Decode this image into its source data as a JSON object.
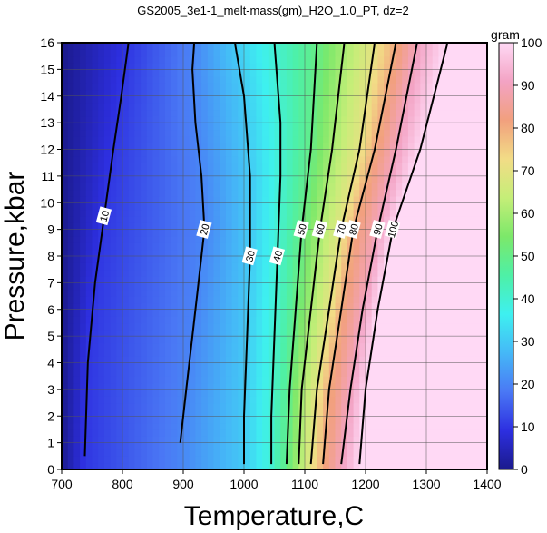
{
  "chart_data": {
    "type": "heatmap",
    "title": "GS2005_3e1-1_melt-mass(gm)_H2O_1.0_PT, dz=2",
    "xlabel": "Temperature,C",
    "ylabel": "Pressure,kbar",
    "xlim": [
      700,
      1400
    ],
    "ylim": [
      0,
      16
    ],
    "x_ticks": [
      "700",
      "800",
      "900",
      "1000",
      "1100",
      "1200",
      "1300",
      "1400"
    ],
    "y_ticks": [
      "0",
      "1",
      "2",
      "3",
      "4",
      "5",
      "6",
      "7",
      "8",
      "9",
      "10",
      "11",
      "12",
      "13",
      "14",
      "15",
      "16"
    ],
    "grid": true,
    "colorbar": {
      "label": "gram",
      "range": [
        0,
        100
      ],
      "ticks": [
        "0",
        "10",
        "20",
        "30",
        "40",
        "50",
        "60",
        "70",
        "80",
        "90",
        "100"
      ],
      "colors": [
        "#1b1a8c",
        "#2d2fe0",
        "#4a78f5",
        "#45b8f7",
        "#3ef0f0",
        "#4ef0a6",
        "#7ce86a",
        "#c5ee78",
        "#f2dc86",
        "#f2a07e",
        "#f3a3c4",
        "#ffd9f5"
      ]
    },
    "contours": [
      {
        "level": 10,
        "label": "10",
        "points": [
          [
            738,
            0.5
          ],
          [
            743,
            4
          ],
          [
            755,
            7
          ],
          [
            770,
            9.5
          ],
          [
            785,
            12
          ],
          [
            798,
            14
          ],
          [
            810,
            16
          ]
        ]
      },
      {
        "level": 20,
        "label": "20",
        "points": [
          [
            895,
            1
          ],
          [
            905,
            3
          ],
          [
            915,
            5
          ],
          [
            925,
            7
          ],
          [
            935,
            9
          ],
          [
            930,
            11
          ],
          [
            920,
            13
          ],
          [
            915,
            15
          ],
          [
            918,
            16
          ]
        ]
      },
      {
        "level": 30,
        "label": "30",
        "points": [
          [
            1000,
            0.2
          ],
          [
            1000,
            2
          ],
          [
            1005,
            5
          ],
          [
            1010,
            8
          ],
          [
            1010,
            11
          ],
          [
            1000,
            14
          ],
          [
            985,
            16
          ]
        ]
      },
      {
        "level": 40,
        "label": "40",
        "points": [
          [
            1045,
            0.2
          ],
          [
            1045,
            2
          ],
          [
            1050,
            5
          ],
          [
            1055,
            8
          ],
          [
            1060,
            11
          ],
          [
            1060,
            13
          ],
          [
            1050,
            16
          ]
        ]
      },
      {
        "level": 50,
        "label": "50",
        "points": [
          [
            1070,
            0.2
          ],
          [
            1075,
            3
          ],
          [
            1085,
            6
          ],
          [
            1095,
            9
          ],
          [
            1110,
            12
          ],
          [
            1120,
            16
          ]
        ]
      },
      {
        "level": 60,
        "label": "60",
        "points": [
          [
            1090,
            0.2
          ],
          [
            1095,
            3
          ],
          [
            1110,
            6
          ],
          [
            1125,
            9
          ],
          [
            1145,
            12
          ],
          [
            1165,
            16
          ]
        ]
      },
      {
        "level": 70,
        "label": "70",
        "points": [
          [
            1110,
            0.2
          ],
          [
            1120,
            3
          ],
          [
            1140,
            6
          ],
          [
            1160,
            9
          ],
          [
            1190,
            12
          ],
          [
            1215,
            16
          ]
        ]
      },
      {
        "level": 80,
        "label": "80",
        "points": [
          [
            1130,
            0.2
          ],
          [
            1140,
            3
          ],
          [
            1160,
            6
          ],
          [
            1180,
            9
          ],
          [
            1215,
            12
          ],
          [
            1250,
            16
          ]
        ]
      },
      {
        "level": 90,
        "label": "90",
        "points": [
          [
            1160,
            0.2
          ],
          [
            1175,
            3
          ],
          [
            1195,
            6
          ],
          [
            1220,
            9
          ],
          [
            1250,
            12
          ],
          [
            1285,
            16
          ]
        ]
      },
      {
        "level": 100,
        "label": "100",
        "points": [
          [
            1190,
            0.2
          ],
          [
            1200,
            3
          ],
          [
            1220,
            6
          ],
          [
            1245,
            9
          ],
          [
            1290,
            12
          ],
          [
            1335,
            16
          ]
        ]
      }
    ]
  }
}
